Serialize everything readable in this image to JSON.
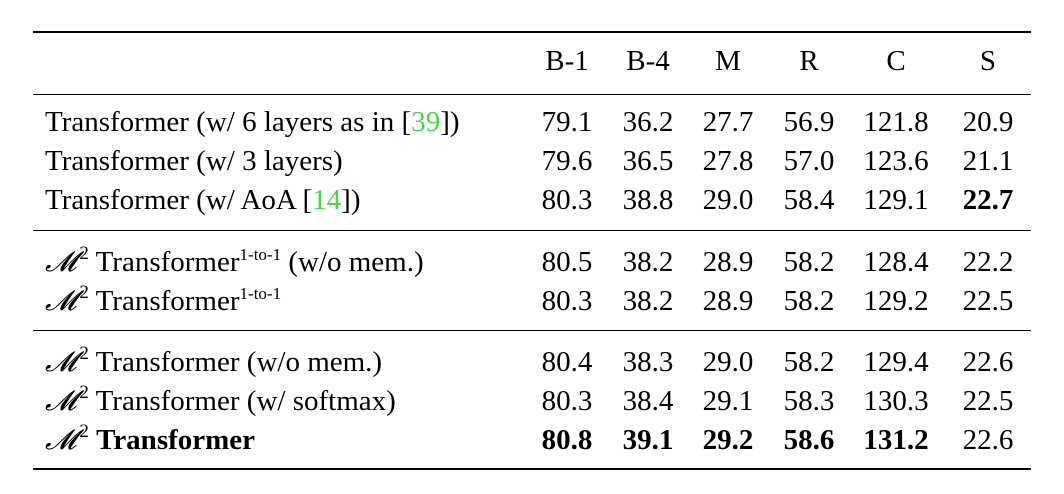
{
  "header": {
    "label": "",
    "cols": [
      "B-1",
      "B-4",
      "M",
      "R",
      "C",
      "S"
    ]
  },
  "groups": [
    {
      "rows": [
        {
          "pre": "Transformer (w/ 6 layers as in [",
          "cite": "39",
          "post": "])",
          "vals": [
            "79.1",
            "36.2",
            "27.7",
            "56.9",
            "121.8",
            "20.9"
          ],
          "bold": [
            false,
            false,
            false,
            false,
            false,
            false
          ]
        },
        {
          "pre": "Transformer (w/ 3 layers)",
          "vals": [
            "79.6",
            "36.5",
            "27.8",
            "57.0",
            "123.6",
            "21.1"
          ],
          "bold": [
            false,
            false,
            false,
            false,
            false,
            false
          ]
        },
        {
          "pre": "Transformer (w/ AoA [",
          "cite": "14",
          "post": "])",
          "vals": [
            "80.3",
            "38.8",
            "29.0",
            "58.4",
            "129.1",
            "22.7"
          ],
          "bold": [
            false,
            false,
            false,
            false,
            false,
            true
          ]
        }
      ]
    },
    {
      "rows": [
        {
          "m2": "𝓜",
          "m2sup": "2",
          "name": "Transformer",
          "namesup": "1-to-1",
          "post": " (w/o mem.)",
          "vals": [
            "80.5",
            "38.2",
            "28.9",
            "58.2",
            "128.4",
            "22.2"
          ]
        },
        {
          "m2": "𝓜",
          "m2sup": "2",
          "name": "Transformer",
          "namesup": "1-to-1",
          "post": "",
          "vals": [
            "80.3",
            "38.2",
            "28.9",
            "58.2",
            "129.2",
            "22.5"
          ]
        }
      ]
    },
    {
      "rows": [
        {
          "m2": "𝓜",
          "m2sup": "2",
          "name": "Transformer",
          "post": " (w/o mem.)",
          "vals": [
            "80.4",
            "38.3",
            "29.0",
            "58.2",
            "129.4",
            "22.6"
          ]
        },
        {
          "m2": "𝓜",
          "m2sup": "2",
          "name": "Transformer",
          "post": " (w/ softmax)",
          "vals": [
            "80.3",
            "38.4",
            "29.1",
            "58.3",
            "130.3",
            "22.5"
          ]
        },
        {
          "m2": "𝓜",
          "m2sup": "2",
          "name": "Transformer",
          "post": "",
          "vals": [
            "80.8",
            "39.1",
            "29.2",
            "58.6",
            "131.2",
            "22.6"
          ]
        }
      ]
    }
  ]
}
